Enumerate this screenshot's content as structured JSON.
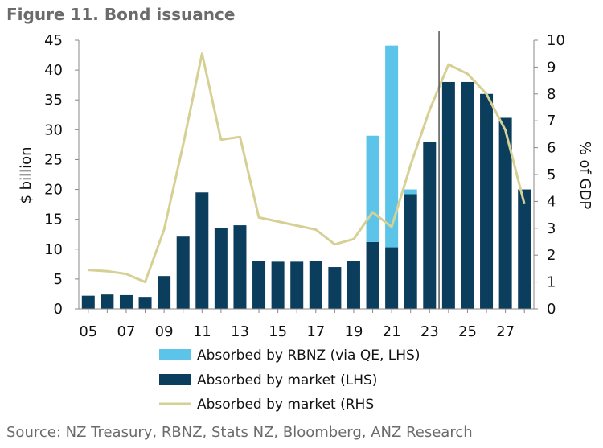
{
  "figure": {
    "title": "Figure 11. Bond issuance",
    "source": "Source: NZ Treasury, RBNZ, Stats NZ, Bloomberg, ANZ Research"
  },
  "colors": {
    "rbnz": "#5bc4e8",
    "market_bar": "#0b3d5c",
    "market_line": "#d6d095",
    "axis": "#888888",
    "forecast_line": "#555555"
  },
  "chart_data": {
    "type": "bar",
    "x": [
      5,
      6,
      7,
      8,
      9,
      10,
      11,
      12,
      13,
      14,
      15,
      16,
      17,
      18,
      19,
      20,
      21,
      22,
      23,
      24,
      25,
      26,
      27,
      28
    ],
    "x_tick_labels": [
      "05",
      "07",
      "09",
      "11",
      "13",
      "15",
      "17",
      "19",
      "21",
      "23",
      "25",
      "27"
    ],
    "y_left": {
      "label": "$ billion",
      "lim": [
        0,
        45
      ],
      "ticks": [
        "0",
        "5",
        "10",
        "15",
        "20",
        "25",
        "30",
        "35",
        "40",
        "45"
      ]
    },
    "y_right": {
      "label": "% of GDP",
      "lim": [
        0,
        10
      ],
      "ticks": [
        "0",
        "1",
        "2",
        "3",
        "4",
        "5",
        "6",
        "7",
        "8",
        "9",
        "10"
      ]
    },
    "forecast_divider_x": 23.5,
    "series": [
      {
        "name": "Absorbed by RBNZ (via QE, LHS)",
        "kind": "bar-stack-top",
        "axis": "left",
        "values": [
          0,
          0,
          0,
          0,
          0,
          0,
          0,
          0,
          0,
          0,
          0,
          0,
          0,
          0,
          0,
          17.8,
          33.8,
          0.8,
          0,
          0,
          0,
          0,
          0,
          0
        ]
      },
      {
        "name": "Absorbed by market (LHS)",
        "kind": "bar-stack-base",
        "axis": "left",
        "values": [
          2.2,
          2.4,
          2.3,
          2.0,
          5.5,
          12.1,
          19.5,
          13.5,
          14.0,
          8.0,
          7.9,
          7.9,
          8.0,
          7.0,
          8.0,
          11.2,
          10.3,
          19.2,
          28.0,
          38.0,
          38.0,
          36.0,
          32.0,
          20.0
        ]
      },
      {
        "name": "Absorbed by market (RHS",
        "kind": "line",
        "axis": "right",
        "values": [
          1.45,
          1.4,
          1.3,
          1.0,
          2.95,
          6.1,
          9.5,
          6.3,
          6.4,
          3.4,
          3.25,
          3.1,
          2.95,
          2.4,
          2.6,
          3.6,
          3.05,
          5.35,
          7.4,
          9.1,
          8.75,
          8.0,
          6.65,
          3.9
        ]
      }
    ],
    "legend_position": "bottom",
    "grid": false
  }
}
